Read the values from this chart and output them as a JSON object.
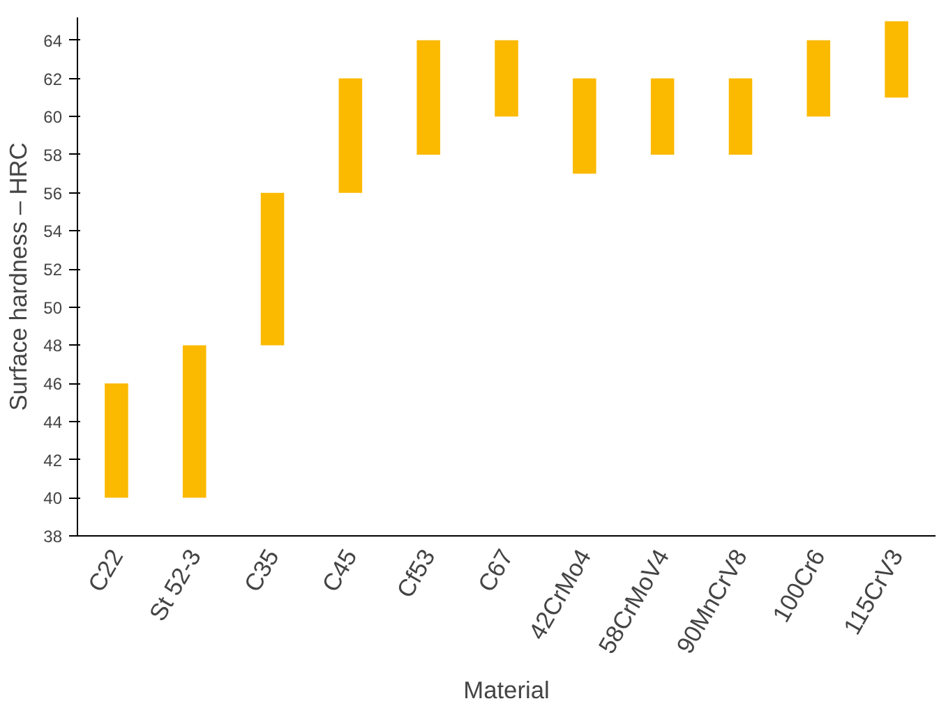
{
  "chart_data": {
    "type": "bar",
    "xlabel": "Material",
    "ylabel": "Surface hardness – HRC",
    "categories": [
      "C22",
      "St 52-3",
      "C35",
      "C45",
      "Cf53",
      "C67",
      "42CrMo4",
      "58CrMoV4",
      "90MnCrV8",
      "100Cr6",
      "115CrV3"
    ],
    "base": [
      40,
      40,
      48,
      56,
      58,
      60,
      57,
      58,
      58,
      60,
      61
    ],
    "values": [
      6,
      8,
      8,
      6,
      6,
      4,
      5,
      4,
      4,
      4,
      4
    ],
    "color": "#fbb900",
    "ylim": [
      38,
      65.2
    ],
    "yticks": [
      38,
      40,
      42,
      44,
      46,
      48,
      50,
      52,
      54,
      56,
      58,
      60,
      62,
      64
    ],
    "grid": false
  }
}
